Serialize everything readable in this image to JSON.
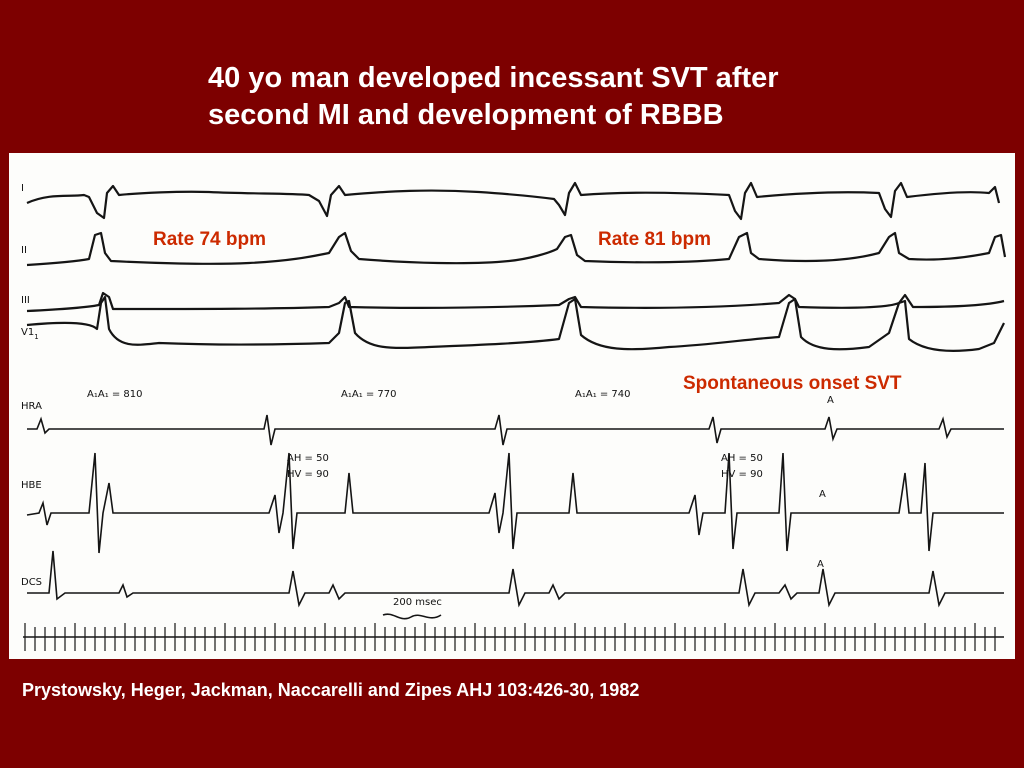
{
  "slide": {
    "title_line1": "40 yo man developed incessant SVT after",
    "title_line2": "second MI and development of RBBB",
    "citation": "Prystowsky, Heger, Jackman, Naccarelli and Zipes  AHJ 103:426-30, 1982"
  },
  "annotations": {
    "rate1": "Rate 74 bpm",
    "rate2": "Rate 81 bpm",
    "svt_onset": "Spontaneous onset SVT",
    "accent_color": "#cc2a00"
  },
  "ecg": {
    "lead_labels": [
      "I",
      "II",
      "III",
      "V1",
      "HRA",
      "HBE",
      "DCS"
    ],
    "lead_v1_subscript": "1",
    "intervals": [
      "A₁A₁ = 810",
      "A₁A₁ = 770",
      "A₁A₁ = 740"
    ],
    "ah_hv_1": {
      "ah": "AH = 50",
      "hv": "HV = 90"
    },
    "ah_hv_2": {
      "ah": "AH = 50",
      "hv": "HV = 90"
    },
    "a_markers": [
      "A",
      "A",
      "A"
    ],
    "scale_label": "200 msec"
  },
  "colors": {
    "background": "#7d0000",
    "panel": "#fdfdfb",
    "trace": "#151515"
  }
}
